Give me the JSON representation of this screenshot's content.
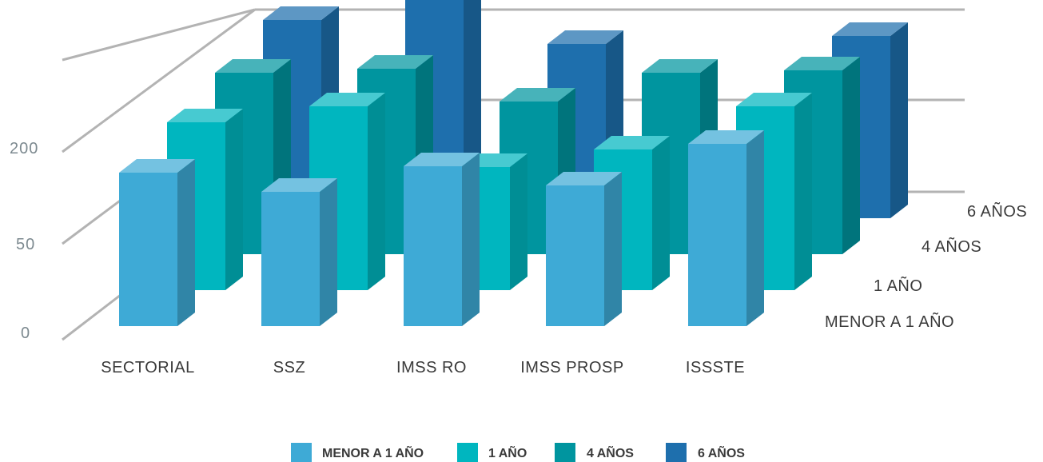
{
  "chart_data": {
    "type": "bar",
    "style": "3d-clustered-depth",
    "categories": [
      "SECTORIAL",
      "SSZ",
      "IMSS RO",
      "IMSS PROSP",
      "ISSSTE"
    ],
    "y_ticks": [
      "0",
      "50",
      "200"
    ],
    "series": [
      {
        "name": "MENOR A 1 AÑO",
        "values": [
          192,
          168,
          200,
          176,
          228
        ]
      },
      {
        "name": "1 AÑO",
        "values": [
          210,
          230,
          154,
          176,
          230
        ]
      },
      {
        "name": "4 AÑOS",
        "values": [
          227,
          232,
          191,
          227,
          230
        ]
      },
      {
        "name": "6 AÑOS",
        "values": [
          248,
          276,
          218,
          90,
          228
        ]
      }
    ],
    "depth_labels": [
      "MENOR A 1 AÑO",
      "1 AÑO",
      "4 AÑOS",
      "6 AÑOS"
    ],
    "legend": {
      "position": "bottom",
      "items": [
        "MENOR A 1 AÑO",
        "1 AÑO",
        "4 AÑOS",
        "6 AÑOS"
      ]
    },
    "colors": [
      "#3eaad6",
      "#00b6bf",
      "#00959f",
      "#1e6fad"
    ],
    "grid": true,
    "title": "",
    "xlabel": "",
    "ylabel": ""
  }
}
